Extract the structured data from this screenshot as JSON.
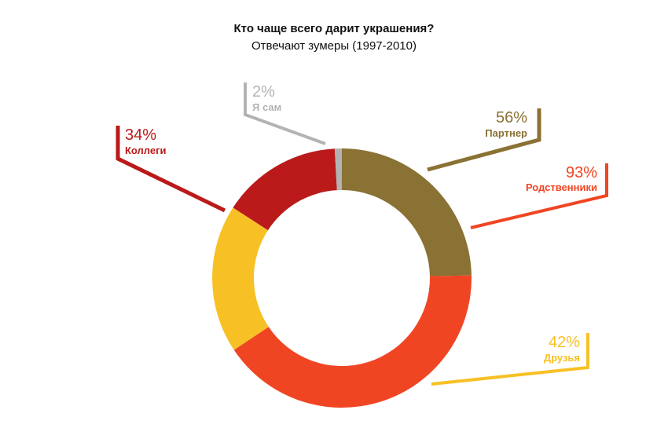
{
  "chart_data": {
    "type": "pie",
    "title": "Кто чаще всего дарит украшения?",
    "subtitle": "Отвечают зумеры (1997-2010)",
    "slices": [
      {
        "label": "Партнер",
        "percent_label": "56%",
        "value": 56,
        "color": "#8a7134"
      },
      {
        "label": "Родственники",
        "percent_label": "93%",
        "value": 93,
        "color": "#f04523"
      },
      {
        "label": "Друзья",
        "percent_label": "42%",
        "value": 42,
        "color": "#f7c125"
      },
      {
        "label": "Коллеги",
        "percent_label": "34%",
        "value": 34,
        "color": "#ba1a1a"
      },
      {
        "label": "Я сам",
        "percent_label": "2%",
        "value": 2,
        "color": "#b3b3b3"
      }
    ]
  }
}
